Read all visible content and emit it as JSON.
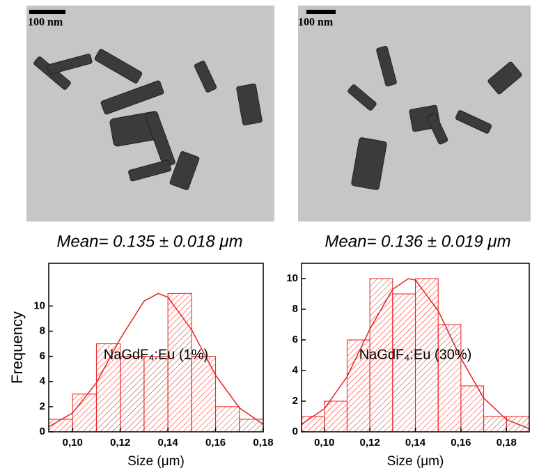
{
  "images": [
    {
      "scale_bar": "100 nm"
    },
    {
      "scale_bar": "100 nm"
    }
  ],
  "chart_data": [
    {
      "type": "histogram",
      "title": "Mean= 0.135 ± 0.018 μm",
      "annotation": "NaGdF₄:Eu (1%)",
      "x_label": "Size (μm)",
      "y_label": "Frequency",
      "color": "#e8201c",
      "bins": [
        0.09,
        0.1,
        0.11,
        0.12,
        0.13,
        0.14,
        0.15,
        0.16,
        0.17,
        0.18
      ],
      "values": [
        1,
        3,
        7,
        6,
        6,
        11,
        6,
        2,
        1
      ],
      "fit": {
        "x": [
          0.09,
          0.1,
          0.11,
          0.12,
          0.13,
          0.136,
          0.14,
          0.15,
          0.16,
          0.17,
          0.18
        ],
        "y": [
          0.4,
          1.5,
          3.9,
          7.4,
          10.4,
          11,
          10.7,
          8.1,
          4.5,
          1.9,
          0.6
        ]
      },
      "xlim": [
        0.09,
        0.18
      ],
      "ylim": [
        0,
        13.4
      ],
      "xticks": [
        {
          "value": 0.1,
          "label": "0,10"
        },
        {
          "value": 0.12,
          "label": "0,12"
        },
        {
          "value": 0.14,
          "label": "0,14"
        },
        {
          "value": 0.16,
          "label": "0,16"
        },
        {
          "value": 0.18,
          "label": "0,18"
        }
      ],
      "yticks": [
        0,
        2,
        4,
        6,
        8,
        10
      ]
    },
    {
      "type": "histogram",
      "title": "Mean= 0.136 ± 0.019 μm",
      "annotation": "NaGdF₄:Eu (30%)",
      "x_label": "Size (μm)",
      "color": "#e8201c",
      "bins": [
        0.09,
        0.1,
        0.11,
        0.12,
        0.13,
        0.14,
        0.15,
        0.16,
        0.17,
        0.18,
        0.19
      ],
      "values": [
        1,
        2,
        6,
        10,
        9,
        10,
        7,
        3,
        1,
        1
      ],
      "fit": {
        "x": [
          0.09,
          0.1,
          0.11,
          0.12,
          0.13,
          0.137,
          0.14,
          0.15,
          0.16,
          0.17,
          0.18,
          0.19
        ],
        "y": [
          0.5,
          1.5,
          3.6,
          6.7,
          9.3,
          10,
          9.9,
          7.9,
          4.8,
          2.2,
          0.8,
          0.2
        ]
      },
      "xlim": [
        0.09,
        0.19
      ],
      "ylim": [
        0,
        11
      ],
      "xticks": [
        {
          "value": 0.1,
          "label": "0,10"
        },
        {
          "value": 0.12,
          "label": "0,12"
        },
        {
          "value": 0.14,
          "label": "0,14"
        },
        {
          "value": 0.16,
          "label": "0,16"
        },
        {
          "value": 0.18,
          "label": "0,18"
        }
      ],
      "yticks": [
        0,
        2,
        4,
        6,
        8,
        10
      ]
    }
  ]
}
